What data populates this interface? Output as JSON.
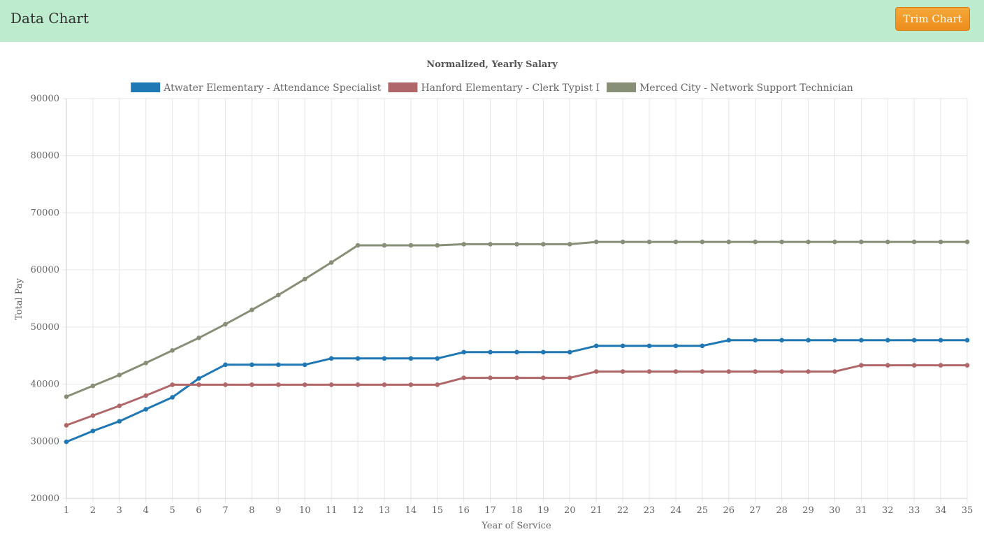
{
  "header": {
    "title": "Data Chart",
    "trim_button_label": "Trim Chart",
    "background_color": "#bdebcd",
    "button_color": "#ee9426"
  },
  "chart_data": {
    "type": "line",
    "title": "Normalized, Yearly Salary",
    "xlabel": "Year of Service",
    "ylabel": "Total Pay",
    "ylim": [
      20000,
      90000
    ],
    "yticks": [
      20000,
      30000,
      40000,
      50000,
      60000,
      70000,
      80000,
      90000
    ],
    "grid": true,
    "legend_position": "top",
    "x": [
      1,
      2,
      3,
      4,
      5,
      6,
      7,
      8,
      9,
      10,
      11,
      12,
      13,
      14,
      15,
      16,
      17,
      18,
      19,
      20,
      21,
      22,
      23,
      24,
      25,
      26,
      27,
      28,
      29,
      30,
      31,
      32,
      33,
      34,
      35
    ],
    "series": [
      {
        "name": "Atwater Elementary - Attendance Specialist",
        "color": "#1f77b4",
        "values": [
          29900,
          31800,
          33500,
          35600,
          37700,
          41000,
          43400,
          43400,
          43400,
          43400,
          44500,
          44500,
          44500,
          44500,
          44500,
          45600,
          45600,
          45600,
          45600,
          45600,
          46700,
          46700,
          46700,
          46700,
          46700,
          47700,
          47700,
          47700,
          47700,
          47700,
          47700,
          47700,
          47700,
          47700,
          47700
        ]
      },
      {
        "name": "Hanford Elementary - Clerk Typist I",
        "color": "#b0676a",
        "values": [
          32800,
          34500,
          36200,
          38000,
          39900,
          39900,
          39900,
          39900,
          39900,
          39900,
          39900,
          39900,
          39900,
          39900,
          39900,
          41100,
          41100,
          41100,
          41100,
          41100,
          42200,
          42200,
          42200,
          42200,
          42200,
          42200,
          42200,
          42200,
          42200,
          42200,
          43300,
          43300,
          43300,
          43300,
          43300
        ]
      },
      {
        "name": "Merced City - Network Support Technician",
        "color": "#878f77",
        "values": [
          37800,
          39700,
          41600,
          43700,
          45900,
          48100,
          50500,
          53000,
          55600,
          58400,
          61300,
          64300,
          64300,
          64300,
          64300,
          64500,
          64500,
          64500,
          64500,
          64500,
          64900,
          64900,
          64900,
          64900,
          64900,
          64900,
          64900,
          64900,
          64900,
          64900,
          64900,
          64900,
          64900,
          64900,
          64900
        ]
      }
    ]
  }
}
